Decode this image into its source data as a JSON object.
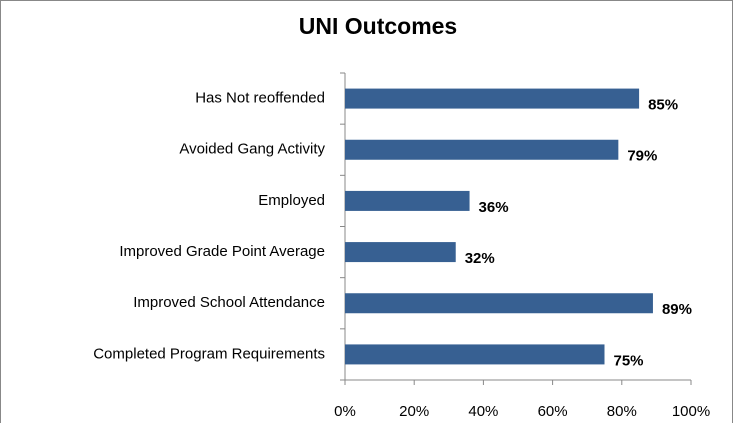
{
  "chart_data": {
    "type": "bar",
    "orientation": "horizontal",
    "title": "UNI Outcomes",
    "categories": [
      "Has Not reoffended",
      "Avoided Gang Activity",
      "Employed",
      "Improved Grade Point Average",
      "Improved School Attendance",
      "Completed Program Requirements"
    ],
    "values": [
      85,
      79,
      36,
      32,
      89,
      75
    ],
    "value_labels": [
      "85%",
      "79%",
      "36%",
      "32%",
      "89%",
      "75%"
    ],
    "color": "#376092",
    "xlim": [
      0,
      100
    ],
    "xticks": [
      {
        "value": 0,
        "label": "0%"
      },
      {
        "value": 20,
        "label": "20%"
      },
      {
        "value": 40,
        "label": "40%"
      },
      {
        "value": 60,
        "label": "60%"
      },
      {
        "value": 80,
        "label": "80%"
      },
      {
        "value": 100,
        "label": "100%"
      }
    ],
    "grid": false
  }
}
